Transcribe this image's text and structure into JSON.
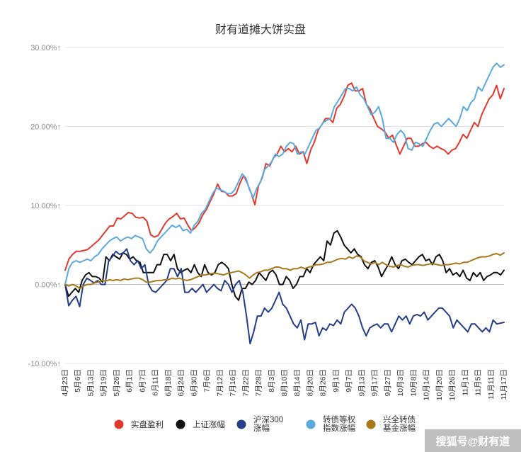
{
  "chart_data": {
    "type": "line",
    "title": "财有道摊大饼实盘",
    "xlabel": "",
    "ylabel": "",
    "ylim": [
      -10,
      30
    ],
    "y_ticks": [
      "-10.00%↑",
      "0.00%↑",
      "10.00%↑",
      "20.00%↑",
      "30.00%↑"
    ],
    "y_tick_values": [
      -10,
      0,
      10,
      20,
      30
    ],
    "grid": "horizontal",
    "legend_position": "bottom",
    "x_tick_labels": [
      "4月23日",
      "5月6日",
      "5月13日",
      "5月19日",
      "5月26日",
      "6月1日",
      "6月7日",
      "6月11日",
      "6月18日",
      "6月24日",
      "6月30日",
      "7月6日",
      "7月12日",
      "7月16日",
      "7月22日",
      "7月28日",
      "8月3日",
      "8月10日",
      "8月14日",
      "8月20日",
      "8月26日",
      "9月1日",
      "9月7日",
      "9月13日",
      "9月17日",
      "9月27日",
      "10月3日",
      "10月8日",
      "10月14日",
      "10月20日",
      "10月26日",
      "11月1日",
      "11月5日",
      "11月11日",
      "11月17日"
    ],
    "series": [
      {
        "name": "实盘盈利",
        "color": "#e03a2f",
        "values": [
          1.8,
          3.2,
          3.8,
          4.2,
          4.2,
          4.3,
          4.4,
          4.8,
          5.2,
          5.6,
          6.2,
          6.8,
          7.4,
          7.4,
          8.4,
          8.3,
          8.7,
          9.1,
          9.0,
          8.5,
          8.4,
          8.5,
          8.0,
          6.3,
          6.0,
          6.2,
          7.0,
          7.8,
          8.3,
          8.6,
          9.0,
          8.3,
          8.4,
          7.5,
          6.8,
          7.2,
          7.8,
          8.8,
          9.5,
          10.5,
          11.5,
          12.7,
          11.8,
          11.7,
          11.2,
          11.2,
          11.5,
          12.8,
          13.8,
          12.8,
          11.6,
          10.1,
          12.5,
          13.5,
          15.3,
          15.0,
          16.0,
          16.5,
          17.5,
          16.8,
          17.2,
          16.8,
          17.5,
          16.5,
          16.8,
          15.3,
          17.0,
          18.0,
          19.5,
          20.2,
          21.0,
          21.0,
          20.5,
          22.3,
          22.8,
          23.8,
          25.2,
          25.5,
          24.5,
          24.5,
          24.8,
          22.8,
          22.2,
          21.0,
          20.0,
          19.7,
          19.3,
          18.5,
          18.9,
          17.7,
          16.5,
          17.5,
          18.5,
          18.5,
          17.5,
          17.5,
          17.8,
          18.0,
          17.5,
          17.2,
          17.5,
          17.2,
          17.0,
          16.5,
          17.0,
          17.2,
          18.0,
          19.0,
          18.5,
          19.5,
          20.5,
          20.0,
          21.5,
          22.5,
          23.5,
          24.0,
          25.2,
          23.5,
          24.8
        ]
      },
      {
        "name": "上证涨幅",
        "color": "#111111",
        "values": [
          0.0,
          -1.5,
          -1.0,
          -0.5,
          -1.0,
          0.5,
          1.2,
          1.5,
          1.0,
          1.0,
          0.8,
          0.3,
          3.5,
          3.0,
          3.8,
          3.5,
          3.2,
          4.0,
          3.8,
          3.2,
          3.5,
          3.0,
          2.8,
          1.5,
          1.5,
          1.5,
          1.5,
          2.5,
          2.5,
          3.8,
          3.8,
          3.0,
          3.8,
          2.0,
          1.5,
          1.8,
          2.0,
          1.5,
          2.5,
          1.5,
          1.0,
          2.5,
          1.5,
          1.2,
          1.5,
          2.5,
          2.8,
          2.5,
          2.0,
          0.0,
          -1.5,
          -2.0,
          -0.5,
          -0.5,
          0.3,
          0.0,
          0.5,
          1.5,
          1.0,
          0.5,
          1.5,
          1.8,
          1.2,
          0.0,
          0.0,
          1.0,
          0.5,
          -0.5,
          0.0,
          1.0,
          1.0,
          2.0,
          1.5,
          2.5,
          3.0,
          3.5,
          3.0,
          5.5,
          5.0,
          6.5,
          6.8,
          6.0,
          5.0,
          4.5,
          4.0,
          4.5,
          3.8,
          3.5,
          2.5,
          2.0,
          2.8,
          3.0,
          2.2,
          1.0,
          1.8,
          2.5,
          3.5,
          2.5,
          2.0,
          3.0,
          3.2,
          2.8,
          2.5,
          3.0,
          3.5,
          3.8,
          3.0,
          3.2,
          2.5,
          3.5,
          3.8,
          3.0,
          1.5,
          2.0,
          1.2,
          1.5,
          1.0,
          1.8,
          0.8,
          0.5,
          1.5,
          1.0,
          1.5,
          0.5,
          1.0,
          1.2,
          1.5,
          1.5,
          1.2,
          1.8
        ]
      },
      {
        "name": "沪深300涨幅",
        "color": "#243f8a",
        "values": [
          0.0,
          -2.7,
          -2.0,
          -1.5,
          -2.8,
          0.0,
          0.8,
          0.5,
          0.2,
          0.5,
          0.0,
          0.0,
          3.0,
          3.5,
          4.2,
          3.8,
          4.0,
          4.5,
          3.0,
          2.5,
          3.0,
          2.0,
          2.5,
          0.0,
          -0.8,
          -1.0,
          -0.5,
          0.0,
          0.5,
          2.0,
          2.0,
          1.0,
          2.0,
          -1.0,
          -1.0,
          -0.5,
          -1.0,
          -0.5,
          0.0,
          -1.0,
          -0.5,
          0.0,
          -0.5,
          -0.8,
          0.5,
          0.0,
          -1.0,
          0.0,
          0.5,
          -1.0,
          -4.0,
          -7.5,
          -6.0,
          -4.0,
          -4.0,
          -3.0,
          -3.5,
          -3.0,
          -2.0,
          -1.0,
          -2.5,
          -3.0,
          -4.0,
          -5.0,
          -5.5,
          -4.5,
          -7.0,
          -5.0,
          -5.0,
          -4.8,
          -6.5,
          -5.5,
          -5.8,
          -5.0,
          -5.2,
          -4.5,
          -5.0,
          -3.5,
          -3.0,
          -2.5,
          -3.0,
          -4.0,
          -5.5,
          -6.5,
          -5.5,
          -5.2,
          -5.0,
          -5.5,
          -5.0,
          -5.0,
          -6.0,
          -5.0,
          -4.0,
          -4.5,
          -4.0,
          -5.0,
          -4.0,
          -3.8,
          -4.0,
          -3.5,
          -4.5,
          -4.0,
          -3.5,
          -3.0,
          -3.0,
          -3.5,
          -4.0,
          -5.5,
          -4.5,
          -5.0,
          -5.5,
          -6.0,
          -5.0,
          -5.0,
          -5.5,
          -6.0,
          -5.5,
          -6.0,
          -4.5,
          -5.0,
          -4.9,
          -4.8
        ]
      },
      {
        "name": "转债等权指数涨幅",
        "color": "#5aaae0",
        "values": [
          0.0,
          2.0,
          2.8,
          3.0,
          2.8,
          3.0,
          3.2,
          3.0,
          3.5,
          3.8,
          4.5,
          5.0,
          5.5,
          5.8,
          6.0,
          5.5,
          5.8,
          6.0,
          5.8,
          6.2,
          6.0,
          5.8,
          4.5,
          4.0,
          4.5,
          5.5,
          6.0,
          6.5,
          7.0,
          7.5,
          7.2,
          7.5,
          6.8,
          7.0,
          6.5,
          7.5,
          8.0,
          9.0,
          9.5,
          10.5,
          11.5,
          12.2,
          12.0,
          11.8,
          11.5,
          11.5,
          12.0,
          13.0,
          14.0,
          13.5,
          12.0,
          11.0,
          12.2,
          13.0,
          14.5,
          15.0,
          15.5,
          16.5,
          16.2,
          16.5,
          17.5,
          18.0,
          17.8,
          16.5,
          16.8,
          16.5,
          17.5,
          18.5,
          19.5,
          19.8,
          20.5,
          20.8,
          21.0,
          22.5,
          23.2,
          24.0,
          24.8,
          24.8,
          24.5,
          25.0,
          24.0,
          23.5,
          22.5,
          21.5,
          21.8,
          22.5,
          21.0,
          18.5,
          18.5,
          18.0,
          19.0,
          19.5,
          19.0,
          17.2,
          17.0,
          18.0,
          17.8,
          17.5,
          18.5,
          19.5,
          20.3,
          20.5,
          20.0,
          20.5,
          21.0,
          20.5,
          20.0,
          21.0,
          22.5,
          22.0,
          23.0,
          23.5,
          25.0,
          24.5,
          25.5,
          26.5,
          27.5,
          28.0,
          27.5,
          27.8
        ]
      },
      {
        "name": "兴全转债基金涨幅",
        "color": "#a87a1a",
        "values": [
          0.0,
          -0.2,
          0.0,
          -0.2,
          -0.5,
          -0.2,
          0.0,
          0.0,
          0.2,
          0.3,
          0.5,
          0.4,
          0.6,
          0.5,
          0.6,
          0.5,
          0.7,
          0.6,
          0.7,
          0.8,
          0.8,
          0.6,
          0.3,
          0.3,
          0.4,
          0.5,
          0.5,
          0.6,
          0.6,
          0.8,
          0.7,
          0.8,
          0.6,
          0.5,
          0.6,
          0.8,
          1.0,
          1.2,
          1.2,
          1.3,
          1.4,
          1.4,
          1.3,
          1.2,
          1.4,
          1.5,
          1.6,
          1.7,
          1.5,
          1.2,
          0.8,
          1.2,
          1.5,
          1.6,
          1.8,
          1.8,
          2.0,
          2.2,
          2.2,
          2.0,
          2.0,
          1.8,
          2.0,
          2.0,
          2.2,
          2.0,
          2.2,
          2.3,
          2.5,
          2.5,
          2.6,
          2.8,
          2.8,
          3.0,
          3.2,
          3.3,
          3.2,
          3.5,
          3.3,
          3.6,
          3.5,
          3.0,
          2.8,
          2.6,
          2.8,
          2.5,
          2.8,
          2.5,
          2.3,
          2.2,
          2.4,
          2.5,
          2.3,
          2.2,
          2.4,
          2.5,
          2.5,
          2.4,
          2.5,
          2.6,
          2.6,
          2.5,
          2.4,
          2.5,
          2.5,
          2.6,
          2.7,
          2.6,
          2.8,
          2.8,
          3.0,
          3.2,
          3.4,
          3.5,
          3.5,
          3.6,
          3.8,
          3.9,
          3.7,
          4.0
        ]
      }
    ],
    "legend": [
      {
        "label_lines": [
          "实盘盈利"
        ],
        "color": "#e03a2f"
      },
      {
        "label_lines": [
          "上证涨幅"
        ],
        "color": "#111111"
      },
      {
        "label_lines": [
          "沪深300",
          "涨幅"
        ],
        "color": "#243f8a"
      },
      {
        "label_lines": [
          "转债等权",
          "指数涨幅"
        ],
        "color": "#5aaae0"
      },
      {
        "label_lines": [
          "兴全转债",
          "基金涨幅"
        ],
        "color": "#a87a1a"
      }
    ],
    "watermark": "搜狐号@财有道"
  }
}
